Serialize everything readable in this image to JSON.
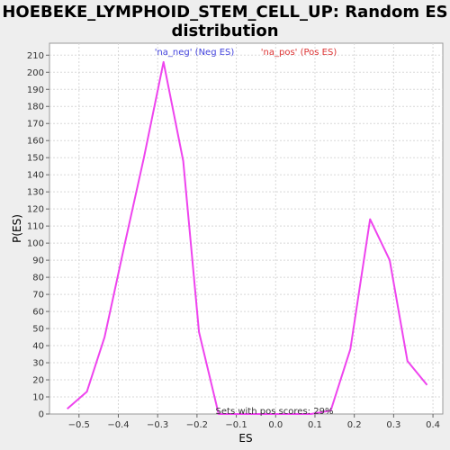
{
  "chart_data": {
    "type": "line",
    "title_line1": "HOEBEKE_LYMPHOID_STEM_CELL_UP: Random ES",
    "title_line2": "distribution",
    "xlabel": "ES",
    "ylabel": "P(ES)",
    "xlim": [
      -0.575,
      0.425
    ],
    "ylim": [
      0,
      217
    ],
    "x_ticks": [
      -0.5,
      -0.4,
      -0.3,
      -0.2,
      -0.1,
      0.0,
      0.1,
      0.2,
      0.3,
      0.4
    ],
    "x_tick_labels": [
      "−0.5",
      "−0.4",
      "−0.3",
      "−0.2",
      "−0.1",
      "0.0",
      "0.1",
      "0.2",
      "0.3",
      "0.4"
    ],
    "y_ticks": [
      0,
      10,
      20,
      30,
      40,
      50,
      60,
      70,
      80,
      90,
      100,
      110,
      120,
      130,
      140,
      150,
      160,
      170,
      180,
      190,
      200,
      210
    ],
    "grid": true,
    "legend": [
      {
        "label": "'na_neg' (Neg ES)",
        "color": "#4444dd"
      },
      {
        "label": "'na_pos' (Pos ES)",
        "color": "#dd3333"
      }
    ],
    "annotation": "Sets with pos scores: 29%",
    "series": [
      {
        "color": "#ee44ee",
        "x": [
          -0.53,
          -0.48,
          -0.435,
          -0.385,
          -0.335,
          -0.285,
          -0.235,
          -0.195,
          -0.145,
          -0.1,
          -0.05,
          0.0,
          0.05,
          0.09,
          0.14,
          0.19,
          0.24,
          0.29,
          0.335,
          0.385
        ],
        "y": [
          3,
          13,
          45,
          98,
          150,
          206,
          148,
          48,
          0,
          0,
          0,
          0,
          0,
          0,
          2,
          38,
          114,
          90,
          31,
          17
        ]
      }
    ]
  }
}
